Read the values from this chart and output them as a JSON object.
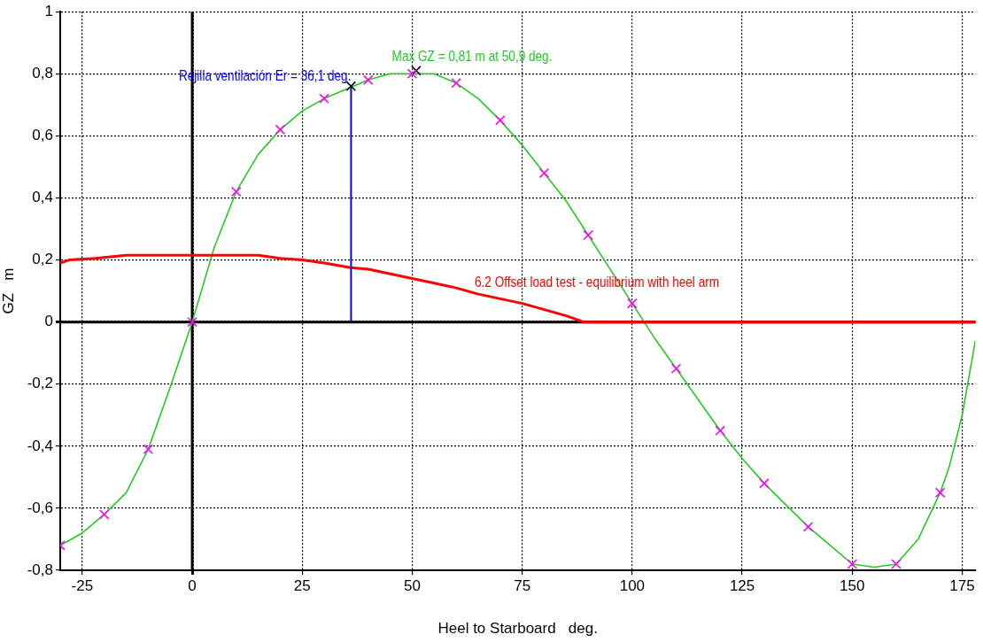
{
  "chart_data": {
    "type": "line",
    "xlabel": "Heel to Starboard   deg.",
    "ylabel": "GZ   m",
    "xlim": [
      -30,
      178
    ],
    "ylim": [
      -0.8,
      1
    ],
    "xticks": [
      -25,
      0,
      25,
      50,
      75,
      100,
      125,
      150,
      175
    ],
    "yticks": [
      {
        "value": -0.8,
        "label": "-0,8"
      },
      {
        "value": -0.6,
        "label": "-0,6"
      },
      {
        "value": -0.4,
        "label": "-0,4"
      },
      {
        "value": -0.2,
        "label": "-0,2"
      },
      0,
      {
        "value": 0.2,
        "label": "0,2"
      },
      {
        "value": 0.4,
        "label": "0,4"
      },
      {
        "value": 0.6,
        "label": "0,6"
      },
      {
        "value": 0.8,
        "label": "0,8"
      },
      1
    ],
    "grid": true,
    "legend": false,
    "series": [
      {
        "name": "Max GZ = 0,81 m at 50,9 deg.",
        "color": "#22cc22",
        "x": [
          -30,
          -25,
          -20,
          -15,
          -10,
          -5,
          0,
          5,
          10,
          15,
          20,
          25,
          30,
          35,
          40,
          45,
          50,
          55,
          60,
          65,
          70,
          75,
          80,
          85,
          90,
          95,
          100,
          105,
          110,
          115,
          120,
          125,
          130,
          135,
          140,
          145,
          150,
          155,
          160,
          165,
          170,
          172,
          175,
          178
        ],
        "values": [
          -0.72,
          -0.68,
          -0.62,
          -0.55,
          -0.41,
          -0.21,
          0,
          0.24,
          0.42,
          0.54,
          0.62,
          0.68,
          0.72,
          0.75,
          0.78,
          0.8,
          0.8,
          0.8,
          0.77,
          0.72,
          0.65,
          0.57,
          0.48,
          0.39,
          0.28,
          0.17,
          0.06,
          -0.05,
          -0.15,
          -0.25,
          -0.35,
          -0.44,
          -0.52,
          -0.59,
          -0.66,
          -0.72,
          -0.78,
          -0.79,
          -0.78,
          -0.7,
          -0.55,
          -0.47,
          -0.3,
          -0.06
        ]
      },
      {
        "name": "6.2 Offset load test - equilibrium with heel arm",
        "color": "#ff0000",
        "x": [
          -30,
          -28,
          -22,
          -15,
          15,
          20,
          25,
          30,
          36,
          40,
          45,
          50,
          55,
          60,
          65,
          70,
          75,
          80,
          85,
          89,
          178
        ],
        "values": [
          0.19,
          0.2,
          0.205,
          0.215,
          0.215,
          0.205,
          0.2,
          0.19,
          0.175,
          0.17,
          0.155,
          0.14,
          0.125,
          0.11,
          0.09,
          0.075,
          0.06,
          0.04,
          0.02,
          0,
          0
        ]
      },
      {
        "name": "Rejilla ventilación Er = 36,1 deg.",
        "color": "#0000ff",
        "x": [
          36.1,
          36.1
        ],
        "values": [
          0,
          0.76
        ]
      },
      {
        "type": "scatter",
        "marker": "cross",
        "color": "#ff00ff",
        "x": [
          -30,
          -20,
          -10,
          0,
          10,
          20,
          30,
          40,
          50,
          60,
          70,
          80,
          90,
          100,
          110,
          120,
          130,
          140,
          150,
          160,
          170
        ],
        "values": [
          -0.72,
          -0.62,
          -0.41,
          0,
          0.42,
          0.62,
          0.72,
          0.78,
          0.8,
          0.77,
          0.65,
          0.48,
          0.28,
          0.06,
          -0.15,
          -0.35,
          -0.52,
          -0.66,
          -0.78,
          -0.78,
          -0.55
        ]
      },
      {
        "type": "scatter",
        "marker": "cross",
        "color": "#000000",
        "x": [
          36.1,
          50.9
        ],
        "values": [
          0.76,
          0.81
        ]
      }
    ]
  }
}
